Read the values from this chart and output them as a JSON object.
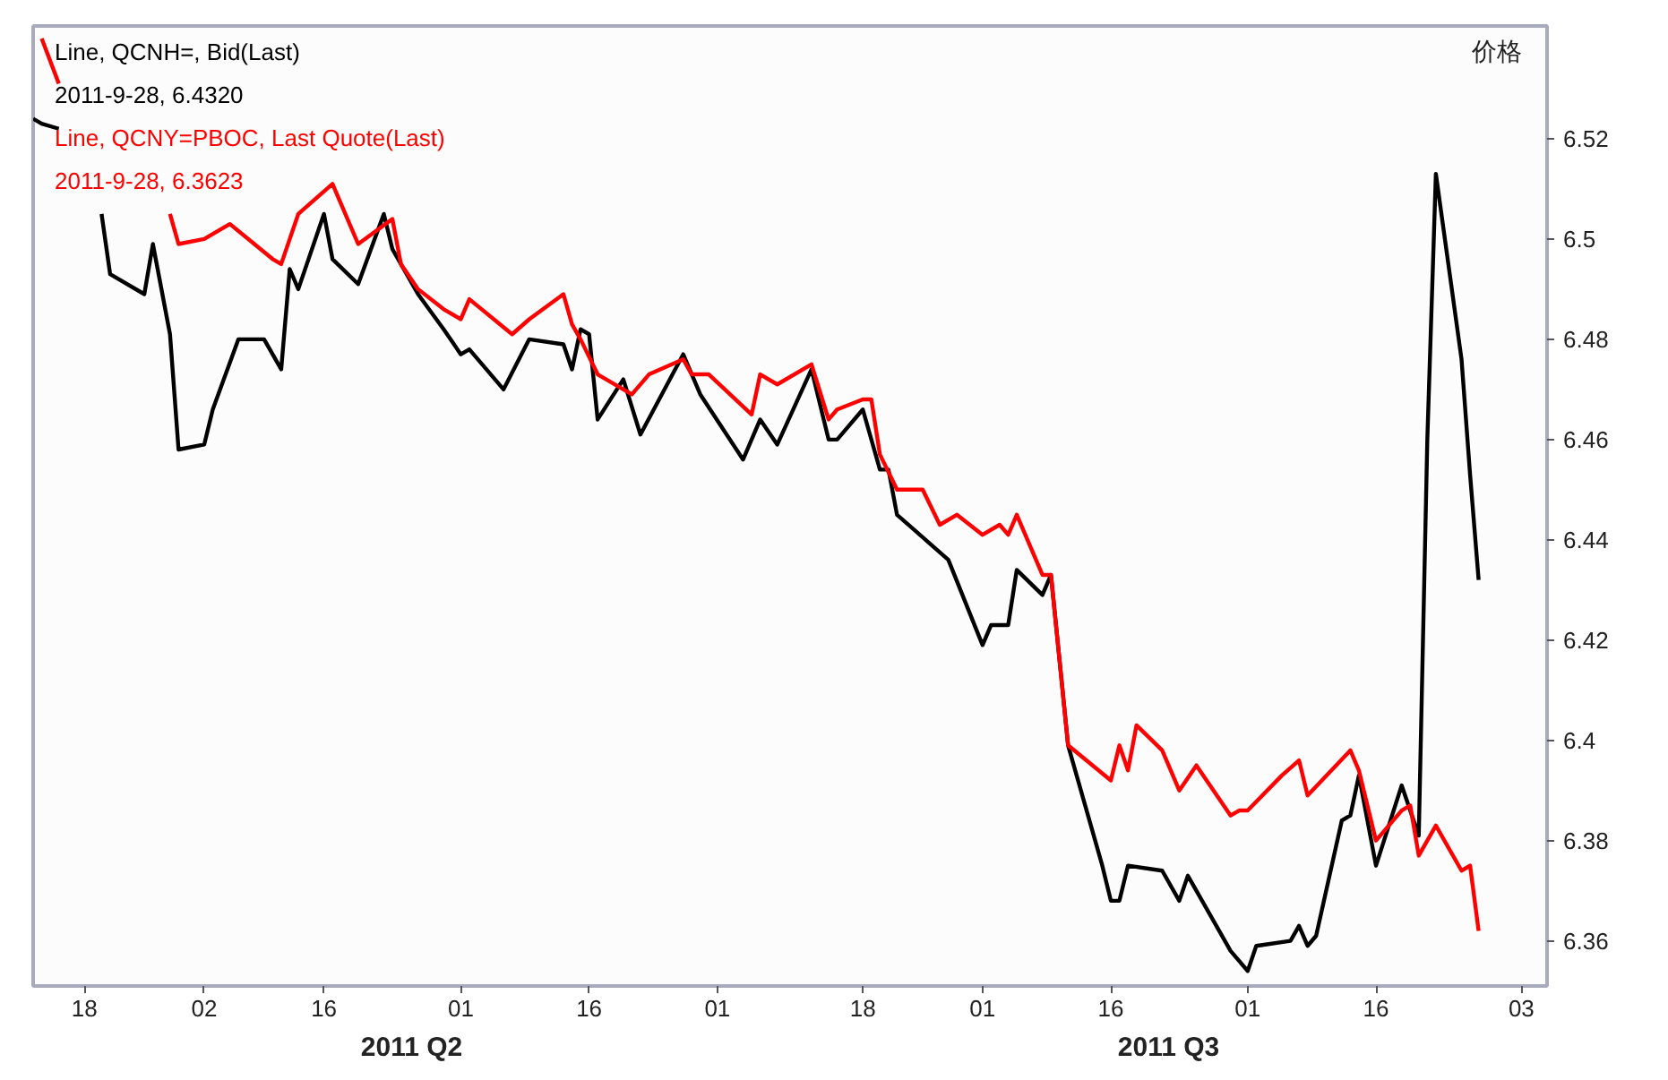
{
  "chart_data": {
    "type": "line",
    "ylabel": "价格",
    "xlim": [
      "2011-04-12",
      "2011-10-06"
    ],
    "xticks": [
      {
        "value": "2011-04-18",
        "label": "18"
      },
      {
        "value": "2011-05-02",
        "label": "02"
      },
      {
        "value": "2011-05-16",
        "label": "16"
      },
      {
        "value": "2011-06-01",
        "label": "01"
      },
      {
        "value": "2011-06-16",
        "label": "16"
      },
      {
        "value": "2011-07-01",
        "label": "01"
      },
      {
        "value": "2011-07-18",
        "label": "18"
      },
      {
        "value": "2011-08-01",
        "label": "01"
      },
      {
        "value": "2011-08-16",
        "label": "16"
      },
      {
        "value": "2011-09-01",
        "label": "01"
      },
      {
        "value": "2011-09-16",
        "label": "16"
      },
      {
        "value": "2011-10-03",
        "label": "03"
      }
    ],
    "ylim": [
      6.351,
      6.5425
    ],
    "yticks": [
      6.36,
      6.38,
      6.4,
      6.42,
      6.44,
      6.46,
      6.48,
      6.5,
      6.52
    ],
    "grid": false,
    "legend": "top left",
    "annotations": [
      "2011-9-28, 6.4320",
      "2011-9-28, 6.3623",
      "2011 Q2",
      "2011 Q3"
    ],
    "series": [
      {
        "name": "Line, QCNH=, Bid(Last)",
        "color": "#000000",
        "x": [
          "2011-04-12",
          "2011-04-13",
          "2011-04-15",
          "2011-04-18",
          "2011-04-20",
          "2011-04-21",
          "2011-04-25",
          "2011-04-26",
          "2011-04-28",
          "2011-04-29",
          "2011-05-02",
          "2011-05-03",
          "2011-05-06",
          "2011-05-09",
          "2011-05-11",
          "2011-05-12",
          "2011-05-13",
          "2011-05-16",
          "2011-05-17",
          "2011-05-20",
          "2011-05-23",
          "2011-05-24",
          "2011-05-27",
          "2011-05-30",
          "2011-06-01",
          "2011-06-02",
          "2011-06-06",
          "2011-06-09",
          "2011-06-13",
          "2011-06-14",
          "2011-06-15",
          "2011-06-16",
          "2011-06-17",
          "2011-06-20",
          "2011-06-22",
          "2011-06-27",
          "2011-06-29",
          "2011-07-04",
          "2011-07-06",
          "2011-07-08",
          "2011-07-12",
          "2011-07-14",
          "2011-07-15",
          "2011-07-18",
          "2011-07-20",
          "2011-07-21",
          "2011-07-22",
          "2011-07-26",
          "2011-07-28",
          "2011-08-01",
          "2011-08-02",
          "2011-08-04",
          "2011-08-05",
          "2011-08-08",
          "2011-08-09",
          "2011-08-11",
          "2011-08-15",
          "2011-08-16",
          "2011-08-17",
          "2011-08-18",
          "2011-08-22",
          "2011-08-24",
          "2011-08-25",
          "2011-08-26",
          "2011-08-30",
          "2011-09-01",
          "2011-09-02",
          "2011-09-06",
          "2011-09-07",
          "2011-09-08",
          "2011-09-09",
          "2011-09-12",
          "2011-09-13",
          "2011-09-14",
          "2011-09-16",
          "2011-09-19",
          "2011-09-21",
          "2011-09-22",
          "2011-09-23",
          "2011-09-26",
          "2011-09-27",
          "2011-09-28"
        ],
        "values": [
          6.524,
          6.523,
          6.522,
          null,
          6.505,
          6.493,
          6.489,
          6.499,
          6.481,
          6.458,
          6.459,
          6.466,
          6.48,
          6.48,
          6.474,
          6.494,
          6.49,
          6.505,
          6.496,
          6.491,
          6.505,
          6.498,
          6.489,
          6.482,
          6.477,
          6.478,
          6.47,
          6.48,
          6.479,
          6.474,
          6.482,
          6.481,
          6.464,
          6.472,
          6.461,
          6.477,
          6.469,
          6.456,
          6.464,
          6.459,
          6.474,
          6.46,
          6.46,
          6.466,
          6.454,
          6.454,
          6.445,
          6.439,
          6.436,
          6.419,
          6.423,
          6.423,
          6.434,
          6.429,
          6.433,
          6.399,
          6.375,
          6.368,
          6.368,
          6.375,
          6.374,
          6.368,
          6.373,
          6.37,
          6.358,
          6.354,
          6.359,
          6.36,
          6.363,
          6.359,
          6.361,
          6.384,
          6.385,
          6.393,
          6.375,
          6.391,
          6.381,
          6.46,
          6.513,
          6.476,
          6.453,
          6.432
        ]
      },
      {
        "name": "Line, QCNY=PBOC, Last Quote(Last)",
        "color": "#ff0000",
        "x": [
          "2011-04-13",
          "2011-04-15",
          "2011-04-18",
          "2011-04-28",
          "2011-04-29",
          "2011-05-02",
          "2011-05-05",
          "2011-05-10",
          "2011-05-11",
          "2011-05-12",
          "2011-05-13",
          "2011-05-17",
          "2011-05-20",
          "2011-05-24",
          "2011-05-25",
          "2011-05-27",
          "2011-05-30",
          "2011-06-01",
          "2011-06-02",
          "2011-06-07",
          "2011-06-09",
          "2011-06-13",
          "2011-06-14",
          "2011-06-15",
          "2011-06-17",
          "2011-06-21",
          "2011-06-23",
          "2011-06-27",
          "2011-06-28",
          "2011-06-30",
          "2011-07-05",
          "2011-07-06",
          "2011-07-08",
          "2011-07-12",
          "2011-07-14",
          "2011-07-15",
          "2011-07-18",
          "2011-07-19",
          "2011-07-20",
          "2011-07-22",
          "2011-07-25",
          "2011-07-27",
          "2011-07-29",
          "2011-08-01",
          "2011-08-03",
          "2011-08-04",
          "2011-08-05",
          "2011-08-08",
          "2011-08-09",
          "2011-08-11",
          "2011-08-16",
          "2011-08-17",
          "2011-08-18",
          "2011-08-19",
          "2011-08-22",
          "2011-08-24",
          "2011-08-26",
          "2011-08-30",
          "2011-08-31",
          "2011-09-01",
          "2011-09-05",
          "2011-09-07",
          "2011-09-08",
          "2011-09-13",
          "2011-09-14",
          "2011-09-16",
          "2011-09-19",
          "2011-09-20",
          "2011-09-21",
          "2011-09-23",
          "2011-09-26",
          "2011-09-27",
          "2011-09-28"
        ],
        "values": [
          6.54,
          6.531,
          null,
          6.505,
          6.499,
          6.5,
          6.503,
          6.496,
          6.495,
          6.5,
          6.505,
          6.511,
          6.499,
          6.504,
          6.495,
          6.49,
          6.486,
          6.484,
          6.488,
          6.481,
          6.484,
          6.489,
          6.483,
          6.48,
          6.473,
          6.469,
          6.473,
          6.476,
          6.473,
          6.473,
          6.465,
          6.473,
          6.471,
          6.475,
          6.464,
          6.466,
          6.468,
          6.468,
          6.457,
          6.45,
          6.45,
          6.443,
          6.445,
          6.441,
          6.443,
          6.441,
          6.445,
          6.433,
          6.433,
          6.399,
          6.392,
          6.399,
          6.394,
          6.403,
          6.398,
          6.39,
          6.395,
          6.385,
          6.386,
          6.386,
          6.393,
          6.396,
          6.389,
          6.398,
          6.394,
          6.38,
          6.386,
          6.387,
          6.377,
          6.383,
          6.374,
          6.375,
          6.362
        ]
      }
    ]
  }
}
